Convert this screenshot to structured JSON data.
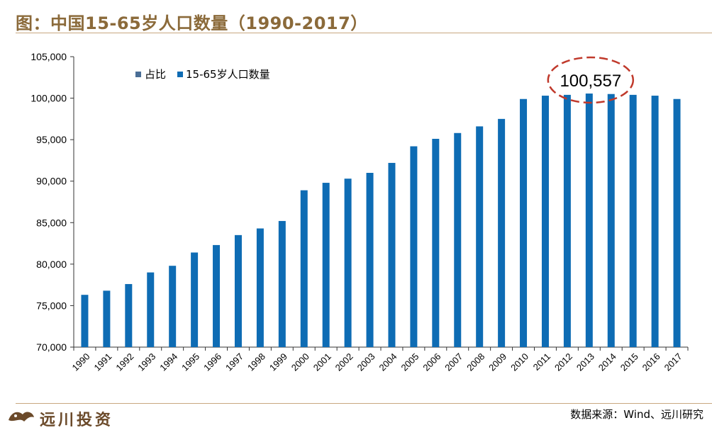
{
  "header": {
    "title": "图：中国15-65岁人口数量（1990-2017）"
  },
  "footer": {
    "logo_text": "远川投资",
    "source": "数据来源：Wind、远川研究"
  },
  "colors": {
    "bar": "#0E6CB4",
    "legend_share": "#4A6E96",
    "title": "#8B6A3A",
    "highlight_ellipse": "#C0392B"
  },
  "chart_data": {
    "type": "bar",
    "title": "",
    "xlabel": "",
    "ylabel": "",
    "ylim": [
      70000,
      105000
    ],
    "yticks": [
      70000,
      75000,
      80000,
      85000,
      90000,
      95000,
      100000,
      105000
    ],
    "ytick_labels": [
      "70,000",
      "75,000",
      "80,000",
      "85,000",
      "90,000",
      "95,000",
      "100,000",
      "105,000"
    ],
    "legend_position": "top-left",
    "legend": [
      "占比",
      "15-65岁人口数量"
    ],
    "grid": false,
    "categories": [
      "1990",
      "1991",
      "1992",
      "1993",
      "1994",
      "1995",
      "1996",
      "1997",
      "1998",
      "1999",
      "2000",
      "2001",
      "2002",
      "2003",
      "2004",
      "2005",
      "2006",
      "2007",
      "2008",
      "2009",
      "2010",
      "2011",
      "2012",
      "2013",
      "2014",
      "2015",
      "2016",
      "2017"
    ],
    "series": [
      {
        "name": "15-65岁人口数量",
        "values": [
          76300,
          76800,
          77600,
          79000,
          79800,
          81400,
          82300,
          83500,
          84300,
          85200,
          88900,
          89800,
          90300,
          91000,
          92200,
          94200,
          95100,
          95800,
          96600,
          97500,
          99900,
          100300,
          100400,
          100557,
          100500,
          100400,
          100300,
          99900
        ]
      }
    ],
    "annotations": [
      {
        "label": "100,557",
        "category": "2013"
      }
    ]
  }
}
